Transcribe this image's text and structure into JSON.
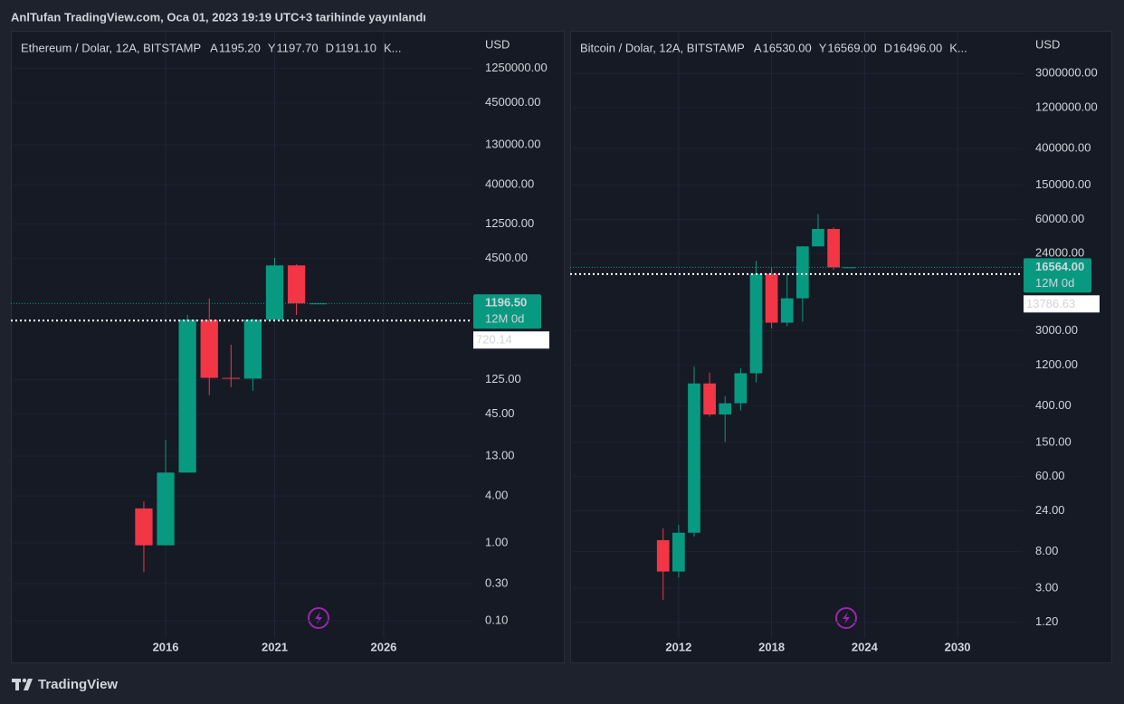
{
  "header": {
    "title": "AnlTufan TradingView.com, Oca 01, 2023 19:19 UTC+3 tarihinde yayınlandı"
  },
  "footer": {
    "brand": "TradingView"
  },
  "chart_data": [
    {
      "type": "candlestick",
      "symbol": "Ethereum / Dolar, 12A, BITSTAMP",
      "ohlc_legend": [
        {
          "key": "A",
          "value": "1195.20"
        },
        {
          "key": "Y",
          "value": "1197.70"
        },
        {
          "key": "D",
          "value": "1191.10"
        },
        {
          "key": "K..."
        }
      ],
      "axis_unit": "USD",
      "x": [
        2015,
        2016,
        2017,
        2018,
        2019,
        2020,
        2021,
        2022,
        2023
      ],
      "open": [
        2.77,
        0.93,
        8.0,
        730,
        132,
        129,
        737,
        3680,
        1195.2
      ],
      "high": [
        3.4,
        21,
        850,
        1380,
        352,
        760,
        4600,
        3800,
        1197.7
      ],
      "low": [
        0.42,
        0.93,
        8.0,
        79,
        100,
        90,
        720,
        850,
        1191.1
      ],
      "close": [
        0.93,
        8.0,
        737,
        132,
        129,
        737,
        3680,
        1196,
        1196.5
      ],
      "up_color": "#089981",
      "down_color": "#f23645",
      "xlim": [
        2008.9,
        2030.07
      ],
      "xticks": [
        2016,
        2021,
        2026
      ],
      "ylim": [
        0.06,
        3810000
      ],
      "log_scale": true,
      "grid": true,
      "yticks": [
        {
          "value": 1250000,
          "label": "1250000.00"
        },
        {
          "value": 450000,
          "label": "450000.00"
        },
        {
          "value": 130000,
          "label": "130000.00"
        },
        {
          "value": 40000,
          "label": "40000.00"
        },
        {
          "value": 12500,
          "label": "12500.00"
        },
        {
          "value": 4500,
          "label": "4500.00"
        },
        {
          "value": 125,
          "label": "125.00"
        },
        {
          "value": 45,
          "label": "45.00"
        },
        {
          "value": 13,
          "label": "13.00"
        },
        {
          "value": 4,
          "label": "4.00"
        },
        {
          "value": 1,
          "label": "1.00"
        },
        {
          "value": 0.3,
          "label": "0.30"
        },
        {
          "value": 0.1,
          "label": "0.10"
        }
      ],
      "last_price": {
        "value": 1196.5,
        "label": "1196.50"
      },
      "countdown": "12M 0d",
      "price_line": {
        "value": 720.14,
        "label": "720.14"
      }
    },
    {
      "type": "candlestick",
      "symbol": "Bitcoin / Dolar, 12A, BITSTAMP",
      "ohlc_legend": [
        {
          "key": "A",
          "value": "16530.00"
        },
        {
          "key": "Y",
          "value": "16569.00"
        },
        {
          "key": "D",
          "value": "16496.00"
        },
        {
          "key": "K..."
        }
      ],
      "axis_unit": "USD",
      "x": [
        2011,
        2012,
        2013,
        2014,
        2015,
        2016,
        2017,
        2018,
        2019,
        2020,
        2021,
        2022,
        2023
      ],
      "open": [
        10.9,
        4.7,
        13.3,
        732,
        318,
        430,
        963,
        13900,
        3742,
        7194,
        28990,
        46300,
        16530
      ],
      "high": [
        15,
        16.5,
        1150,
        980,
        520,
        1100,
        19700,
        16800,
        13880,
        29300,
        69000,
        48200,
        16569
      ],
      "low": [
        2.2,
        4.0,
        12,
        300,
        152,
        355,
        750,
        3200,
        3400,
        3850,
        28800,
        15500,
        16496
      ],
      "close": [
        4.7,
        13.3,
        732,
        318,
        430,
        963,
        13900,
        3742,
        7194,
        28990,
        46300,
        16540,
        16564
      ],
      "up_color": "#089981",
      "down_color": "#f23645",
      "xlim": [
        2005,
        2034.2
      ],
      "xticks": [
        2012,
        2018,
        2024,
        2030
      ],
      "ylim": [
        0.79,
        9460000
      ],
      "log_scale": true,
      "grid": true,
      "yticks": [
        {
          "value": 3000000,
          "label": "3000000.00"
        },
        {
          "value": 1200000,
          "label": "1200000.00"
        },
        {
          "value": 400000,
          "label": "400000.00"
        },
        {
          "value": 150000,
          "label": "150000.00"
        },
        {
          "value": 60000,
          "label": "60000.00"
        },
        {
          "value": 24000,
          "label": "24000.00"
        },
        {
          "value": 3000,
          "label": "3000.00"
        },
        {
          "value": 1200,
          "label": "1200.00"
        },
        {
          "value": 400,
          "label": "400.00"
        },
        {
          "value": 150,
          "label": "150.00"
        },
        {
          "value": 60,
          "label": "60.00"
        },
        {
          "value": 24,
          "label": "24.00"
        },
        {
          "value": 8,
          "label": "8.00"
        },
        {
          "value": 3,
          "label": "3.00"
        },
        {
          "value": 1.2,
          "label": "1.20"
        }
      ],
      "last_price": {
        "value": 16564,
        "label": "16564.00"
      },
      "countdown": "12M 0d",
      "price_line": {
        "value": 13786.63,
        "label": "13786.63"
      }
    }
  ]
}
